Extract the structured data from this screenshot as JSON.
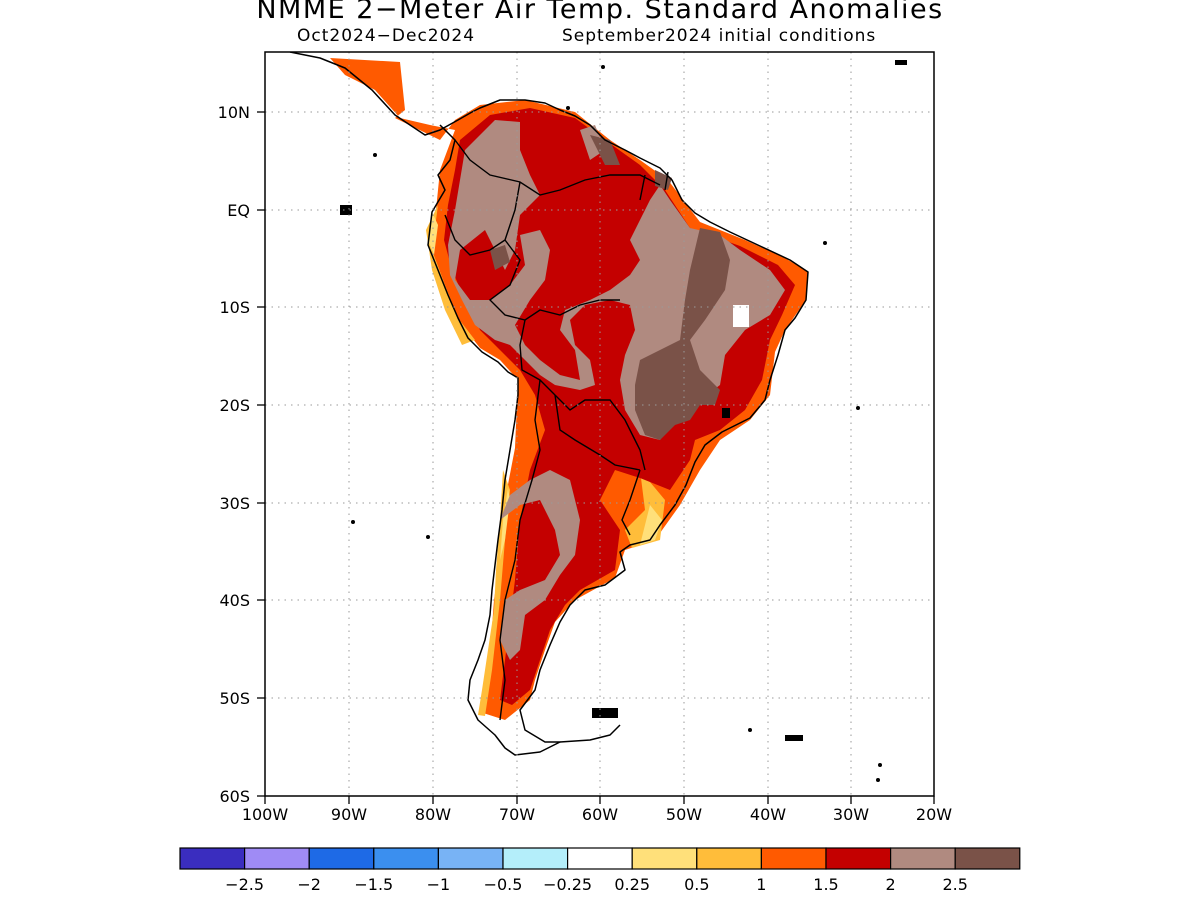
{
  "title": "NMME 2−Meter Air Temp. Standard Anomalies",
  "subtitle_left": "Oct2024−Dec2024",
  "subtitle_right": "September2024 initial conditions",
  "map": {
    "region": "South America",
    "lon_range": [
      -100,
      -20
    ],
    "lat_range": [
      -60,
      6
    ],
    "grid": "dotted",
    "lon_ticks": [
      "100W",
      "90W",
      "80W",
      "70W",
      "60W",
      "50W",
      "40W",
      "30W",
      "20W"
    ],
    "lat_ticks": [
      "10N",
      "EQ",
      "10S",
      "20S",
      "30S",
      "40S",
      "50S",
      "60S"
    ]
  },
  "colorbar": {
    "labels": [
      "−2.5",
      "−2",
      "−1.5",
      "−1",
      "−0.5",
      "−0.25",
      "0.25",
      "0.5",
      "1",
      "1.5",
      "2",
      "2.5"
    ],
    "colors": [
      "#3a2dbf",
      "#9f8bf5",
      "#1e6ae6",
      "#3b8fef",
      "#78b3f5",
      "#b4eefa",
      "#ffffff",
      "#ffe07a",
      "#ffbd3a",
      "#ff5a00",
      "#c40000",
      "#b08a80",
      "#7a5248"
    ]
  },
  "anomaly_colors": {
    "0.25-0.5": "#ffe07a",
    "0.5-1": "#ffbd3a",
    "1-1.5": "#ff5a00",
    "1.5-2": "#c40000",
    "2-2.5": "#b08a80",
    ">2.5": "#7a5248"
  }
}
